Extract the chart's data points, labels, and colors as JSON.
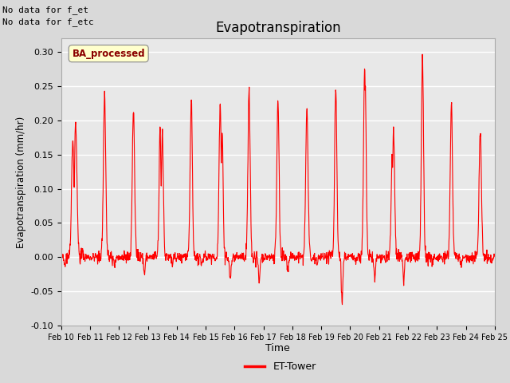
{
  "title": "Evapotranspiration",
  "xlabel": "Time",
  "ylabel": "Evapotranspiration (mm/hr)",
  "ylim": [
    -0.1,
    0.32
  ],
  "yticks": [
    -0.1,
    -0.05,
    0.0,
    0.05,
    0.1,
    0.15,
    0.2,
    0.25,
    0.3
  ],
  "line_color": "red",
  "line_width": 0.8,
  "bg_color": "#d9d9d9",
  "plot_bg_color": "#e8e8e8",
  "legend_label": "ET-Tower",
  "legend_box_label": "BA_processed",
  "top_left_text1": "No data for f_et",
  "top_left_text2": "No data for f_etc",
  "xtick_labels": [
    "Feb 10",
    "Feb 11",
    "Feb 12",
    "Feb 13",
    "Feb 14",
    "Feb 15",
    "Feb 16",
    "Feb 17",
    "Feb 18",
    "Feb 19",
    "Feb 20",
    "Feb 21",
    "Feb 22",
    "Feb 23",
    "Feb 24",
    "Feb 25"
  ],
  "start_day": 10,
  "num_days": 15,
  "points_per_day": 96,
  "daily_peaks": [
    0.197,
    0.24,
    0.215,
    0.185,
    0.23,
    0.225,
    0.24,
    0.233,
    0.215,
    0.245,
    0.275,
    0.183,
    0.29,
    0.222,
    0.185
  ],
  "peak_widths": [
    0.045,
    0.04,
    0.04,
    0.035,
    0.038,
    0.038,
    0.038,
    0.038,
    0.04,
    0.038,
    0.038,
    0.038,
    0.038,
    0.038,
    0.04
  ],
  "secondary_peaks": [
    0.175,
    0.0,
    0.0,
    0.188,
    0.0,
    0.18,
    0.0,
    0.0,
    0.0,
    0.0,
    0.25,
    0.145,
    0.0,
    0.0,
    0.0
  ],
  "sec_offsets": [
    -0.1,
    0.0,
    0.0,
    -0.08,
    0.0,
    0.07,
    0.0,
    0.0,
    0.0,
    0.0,
    0.02,
    -0.05,
    0.0,
    0.0,
    0.0
  ],
  "daily_neg": [
    -0.01,
    -0.015,
    -0.025,
    -0.012,
    -0.012,
    -0.035,
    -0.038,
    -0.02,
    -0.01,
    -0.068,
    -0.035,
    -0.038,
    -0.01,
    -0.012,
    -0.008
  ],
  "neg_positions": [
    0.12,
    0.85,
    0.88,
    0.85,
    0.85,
    0.85,
    0.85,
    0.85,
    0.85,
    0.72,
    0.85,
    0.85,
    0.85,
    0.85,
    0.9
  ]
}
